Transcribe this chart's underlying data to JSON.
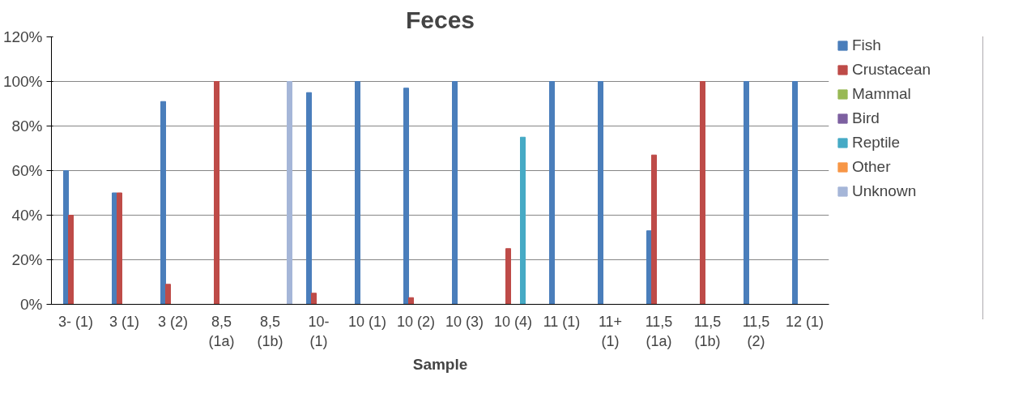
{
  "chart_data": {
    "type": "bar",
    "title": "Feces",
    "xlabel": "Sample",
    "categories": [
      "3- (1)",
      "3 (1)",
      "3 (2)",
      "8,5 (1a)",
      "8,5 (1b)",
      "10- (1)",
      "10 (1)",
      "10 (2)",
      "10 (3)",
      "10 (4)",
      "11 (1)",
      "11+ (1)",
      "11,5 (1a)",
      "11,5 (1b)",
      "11,5 (2)",
      "12 (1)"
    ],
    "series": [
      {
        "name": "Fish",
        "color": "#4a7ebb",
        "values": [
          60,
          50,
          91,
          0,
          0,
          95,
          100,
          97,
          100,
          0,
          100,
          100,
          33,
          0,
          100,
          100
        ]
      },
      {
        "name": "Crustacean",
        "color": "#be4b48",
        "values": [
          40,
          50,
          9,
          100,
          0,
          5,
          0,
          3,
          0,
          25,
          0,
          0,
          67,
          100,
          0,
          0
        ]
      },
      {
        "name": "Mammal",
        "color": "#98b954",
        "values": [
          0,
          0,
          0,
          0,
          0,
          0,
          0,
          0,
          0,
          0,
          0,
          0,
          0,
          0,
          0,
          0
        ]
      },
      {
        "name": "Bird",
        "color": "#7d60a0",
        "values": [
          0,
          0,
          0,
          0,
          0,
          0,
          0,
          0,
          0,
          0,
          0,
          0,
          0,
          0,
          0,
          0
        ]
      },
      {
        "name": "Reptile",
        "color": "#46aac5",
        "values": [
          0,
          0,
          0,
          0,
          0,
          0,
          0,
          0,
          0,
          75,
          0,
          0,
          0,
          0,
          0,
          0
        ]
      },
      {
        "name": "Other",
        "color": "#f79646",
        "values": [
          0,
          0,
          0,
          0,
          0,
          0,
          0,
          0,
          0,
          0,
          0,
          0,
          0,
          0,
          0,
          0
        ]
      },
      {
        "name": "Unknown",
        "color": "#a5b6d8",
        "values": [
          0,
          0,
          0,
          0,
          100,
          0,
          0,
          0,
          0,
          0,
          0,
          0,
          0,
          0,
          0,
          0
        ]
      }
    ],
    "ylim": [
      0,
      120
    ],
    "yticks": [
      {
        "value": 0,
        "label": "0%"
      },
      {
        "value": 20,
        "label": "20%"
      },
      {
        "value": 40,
        "label": "40%"
      },
      {
        "value": 60,
        "label": "60%"
      },
      {
        "value": 80,
        "label": "80%"
      },
      {
        "value": 100,
        "label": "100%"
      },
      {
        "value": 120,
        "label": "120%"
      }
    ],
    "grid": "y",
    "legend": "right"
  }
}
